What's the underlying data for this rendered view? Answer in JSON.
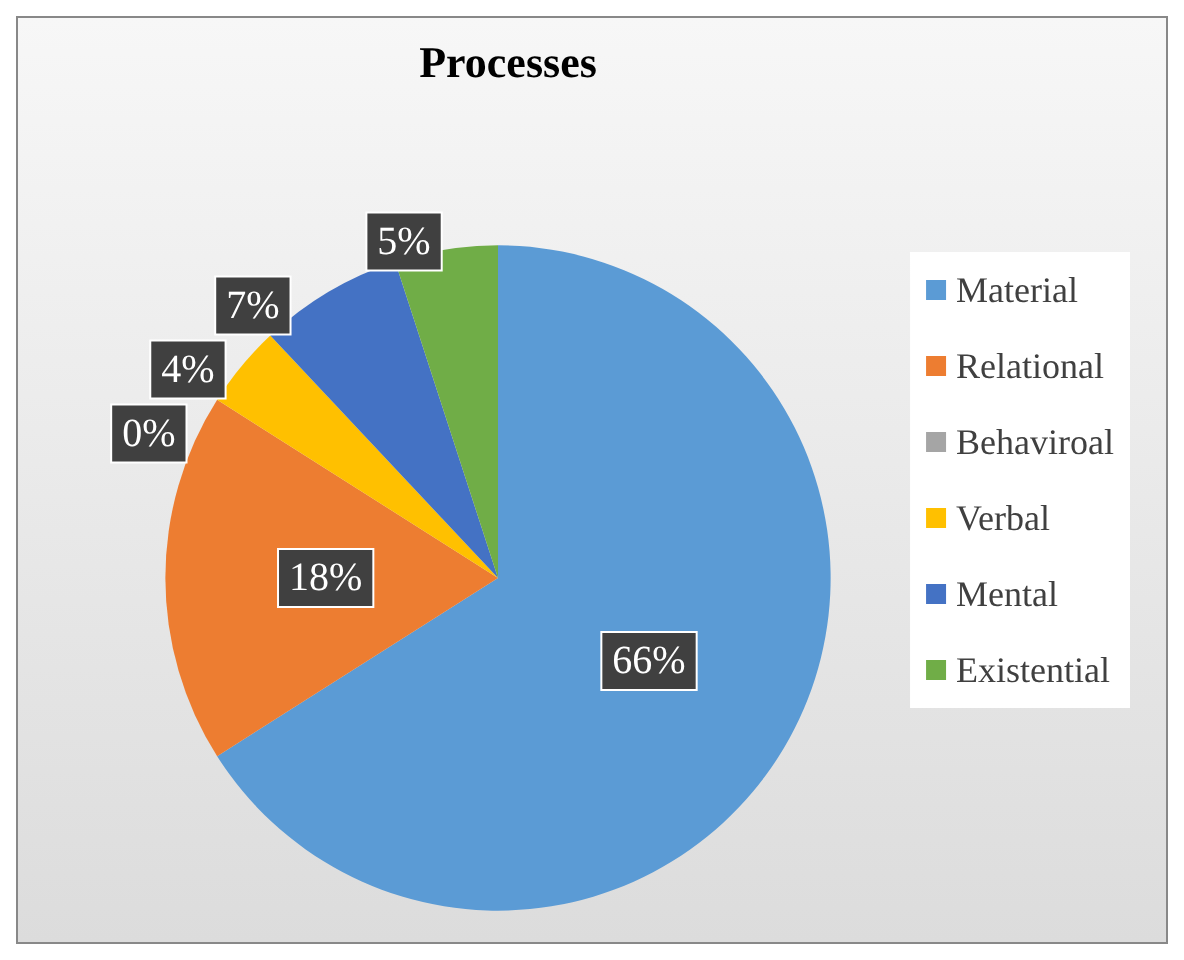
{
  "chart_data": {
    "type": "pie",
    "title": "Processes",
    "categories": [
      "Material",
      "Relational",
      "Behaviroal",
      "Verbal",
      "Mental",
      "Existential"
    ],
    "values": [
      66,
      18,
      0,
      4,
      7,
      5
    ],
    "colors": [
      "#5b9bd5",
      "#ed7d31",
      "#a5a5a5",
      "#ffc000",
      "#4472c4",
      "#70ad47"
    ],
    "value_labels": [
      "66%",
      "18%",
      "0%",
      "4%",
      "7%",
      "5%"
    ],
    "legend": "right"
  }
}
